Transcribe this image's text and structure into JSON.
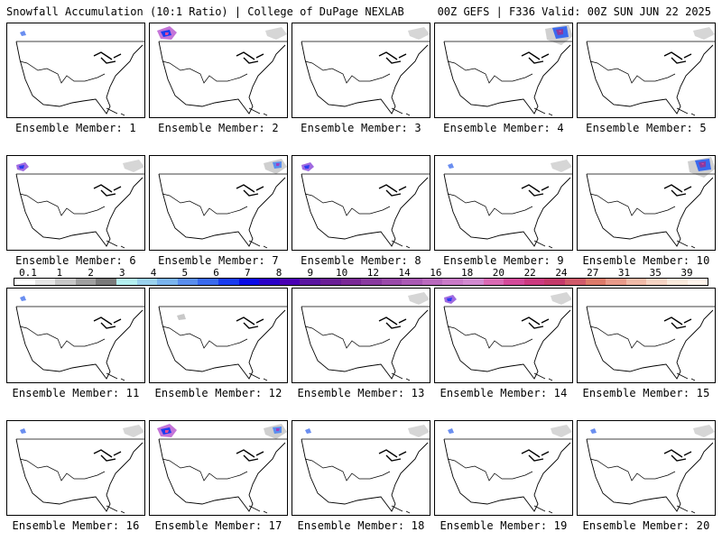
{
  "header": {
    "title": "Snowfall Accumulation (10:1 Ratio) | College of DuPage NEXLAB",
    "run_info": "00Z GEFS | F336 Valid: 00Z SUN JUN 22 2025"
  },
  "legend": {
    "ticks": [
      "0.1",
      "1",
      "2",
      "3",
      "4",
      "5",
      "6",
      "7",
      "8",
      "9",
      "10",
      "12",
      "14",
      "16",
      "18",
      "20",
      "22",
      "24",
      "27",
      "31",
      "35",
      "39"
    ],
    "colors": [
      "#ffffff",
      "#e6e6e6",
      "#c8c8c8",
      "#a0a0a0",
      "#7a7a7a",
      "#b4f0f0",
      "#9ad2ee",
      "#7ab4ee",
      "#5a8eee",
      "#3a6aee",
      "#1a3cf0",
      "#0a0ae6",
      "#2a00c8",
      "#4a00b4",
      "#5a14a0",
      "#6a1e96",
      "#7a2896",
      "#8a3aa0",
      "#9a4aaa",
      "#aa5ab4",
      "#ba6abe",
      "#ca7ac8",
      "#d28ad0",
      "#da6ab4",
      "#d44a9a",
      "#cc3a80",
      "#c43a6a",
      "#d05a6a",
      "#dc7a6a",
      "#e89a8a",
      "#f0baa8",
      "#f6d4c4",
      "#faeadc",
      "#fff4ec"
    ]
  },
  "members": [
    {
      "label": "Ensemble Member: 1",
      "snow": [
        "nw-small"
      ]
    },
    {
      "label": "Ensemble Member: 2",
      "snow": [
        "nw-large",
        "ne-light"
      ]
    },
    {
      "label": "Ensemble Member: 3",
      "snow": [
        "ne-light"
      ]
    },
    {
      "label": "Ensemble Member: 4",
      "snow": [
        "ne-large"
      ]
    },
    {
      "label": "Ensemble Member: 5",
      "snow": [
        "ne-light"
      ]
    },
    {
      "label": "Ensemble Member: 6",
      "snow": [
        "nw-medium",
        "ne-light"
      ]
    },
    {
      "label": "Ensemble Member: 7",
      "snow": [
        "ne-medium"
      ]
    },
    {
      "label": "Ensemble Member: 8",
      "snow": [
        "nw-medium"
      ]
    },
    {
      "label": "Ensemble Member: 9",
      "snow": [
        "nw-small",
        "ne-light"
      ]
    },
    {
      "label": "Ensemble Member: 10",
      "snow": [
        "ne-large"
      ]
    },
    {
      "label": "Ensemble Member: 11",
      "snow": [
        "nw-small"
      ]
    },
    {
      "label": "Ensemble Member: 12",
      "snow": [
        "west-small"
      ]
    },
    {
      "label": "Ensemble Member: 13",
      "snow": [
        "ne-light"
      ]
    },
    {
      "label": "Ensemble Member: 14",
      "snow": [
        "nw-medium",
        "ne-light"
      ]
    },
    {
      "label": "Ensemble Member: 15",
      "snow": []
    },
    {
      "label": "Ensemble Member: 16",
      "snow": [
        "nw-small",
        "ne-light"
      ]
    },
    {
      "label": "Ensemble Member: 17",
      "snow": [
        "nw-large",
        "ne-medium"
      ]
    },
    {
      "label": "Ensemble Member: 18",
      "snow": [
        "nw-small",
        "ne-light"
      ]
    },
    {
      "label": "Ensemble Member: 19",
      "snow": [
        "nw-small",
        "ne-light"
      ]
    },
    {
      "label": "Ensemble Member: 20",
      "snow": [
        "nw-small",
        "ne-light"
      ]
    }
  ]
}
